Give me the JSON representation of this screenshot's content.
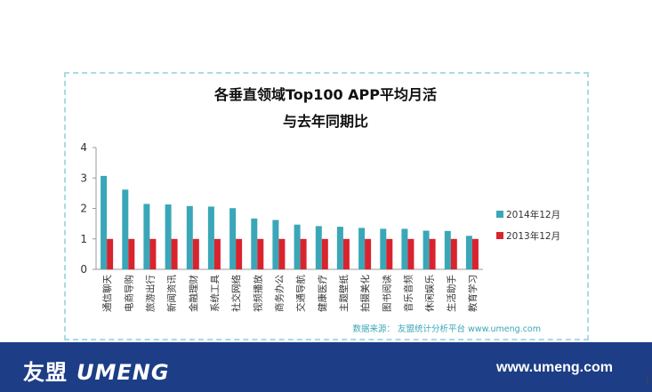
{
  "chart_data": {
    "type": "bar",
    "title_line1": "各垂直领域Top100 APP平均月活",
    "title_line2": "与去年同期比",
    "categories": [
      "通信聊天",
      "电商导购",
      "旅游出行",
      "新闻资讯",
      "金融理财",
      "系统工具",
      "社交网络",
      "视频播放",
      "商务办公",
      "交通导航",
      "健康医疗",
      "主题壁纸",
      "拍摄美化",
      "图书阅读",
      "音乐音频",
      "休闲娱乐",
      "生活助手",
      "教育学习"
    ],
    "series": [
      {
        "name": "2014年12月",
        "color": "#3aa7b8",
        "values": [
          3.07,
          2.62,
          2.15,
          2.13,
          2.08,
          2.06,
          2.01,
          1.67,
          1.62,
          1.47,
          1.42,
          1.4,
          1.36,
          1.33,
          1.33,
          1.27,
          1.26,
          1.1
        ]
      },
      {
        "name": "2013年12月",
        "color": "#d9232e",
        "values": [
          1,
          1,
          1,
          1,
          1,
          1,
          1,
          1,
          1,
          1,
          1,
          1,
          1,
          1,
          1,
          1,
          1,
          1
        ]
      }
    ],
    "y_ticks": [
      "0",
      "1",
      "2",
      "3",
      "4"
    ],
    "ylim": [
      0,
      4
    ],
    "grid": false,
    "legend_position": "right",
    "source_note": "数据来源： 友盟统计分析平台 www.umeng.com"
  },
  "footer": {
    "logo_cn": "友盟",
    "logo_en": "UMENG",
    "website": "www.umeng.com"
  }
}
